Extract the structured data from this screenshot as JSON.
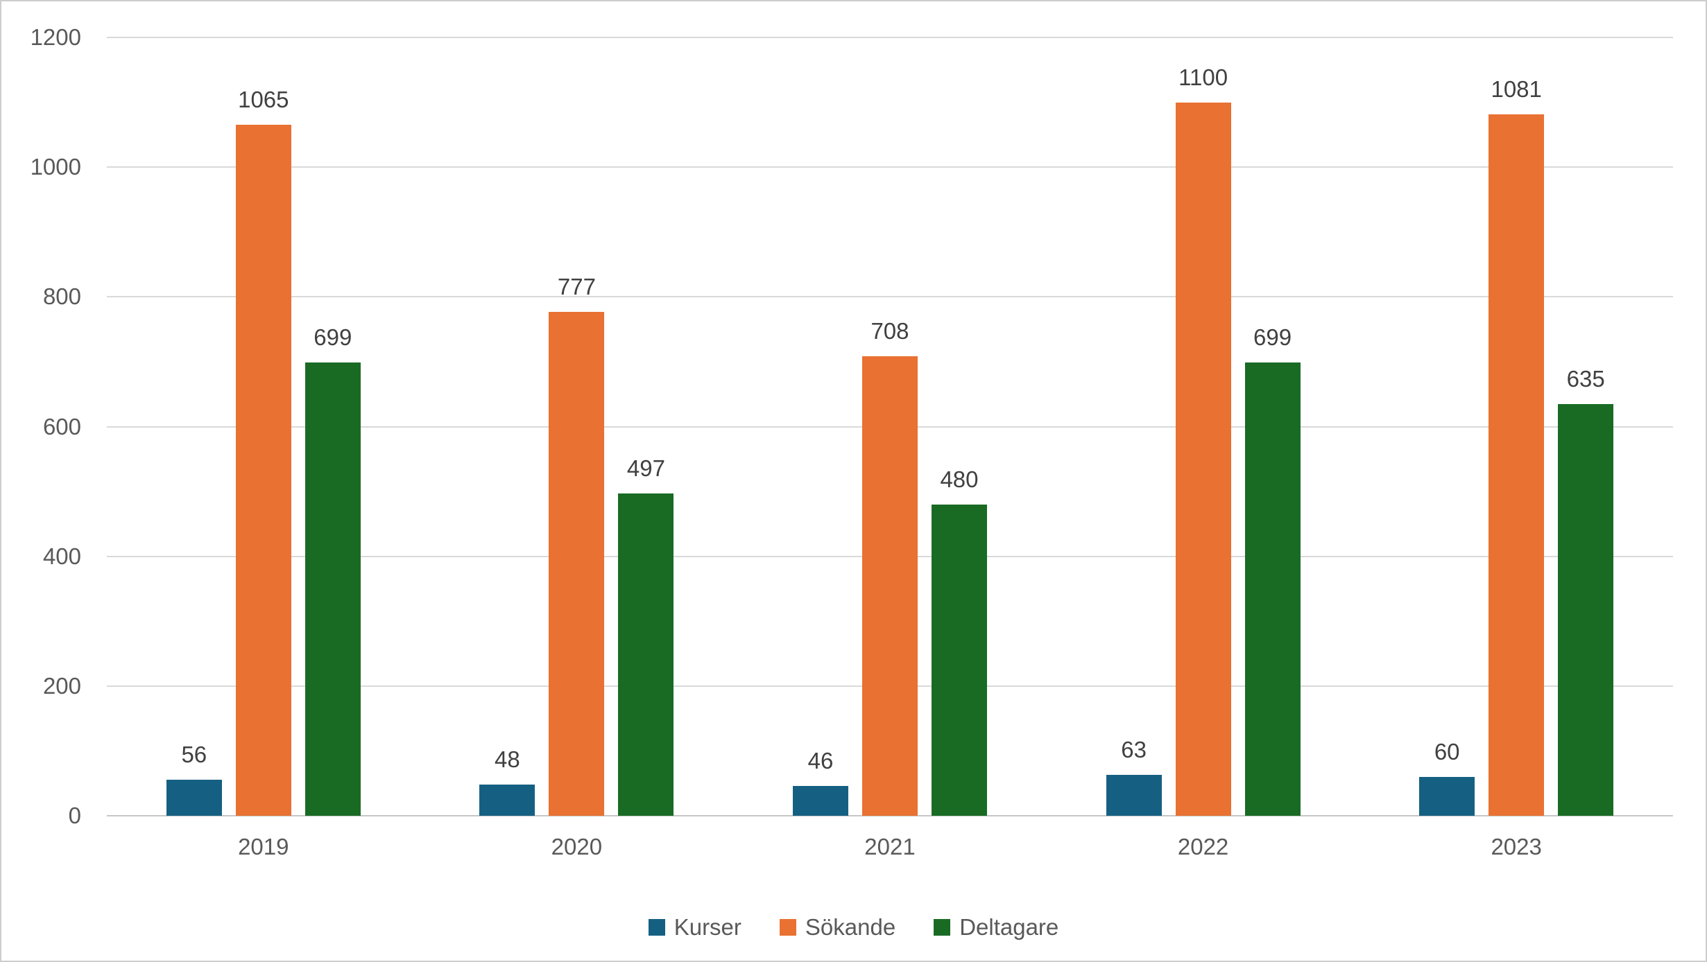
{
  "chart_data": {
    "type": "bar",
    "title": "",
    "categories": [
      "2019",
      "2020",
      "2021",
      "2022",
      "2023"
    ],
    "series": [
      {
        "name": "Kurser",
        "color": "#156082",
        "values": [
          56,
          48,
          46,
          63,
          60
        ]
      },
      {
        "name": "Sökande",
        "color": "#E97132",
        "values": [
          1065,
          777,
          708,
          1100,
          1081
        ]
      },
      {
        "name": "Deltagare",
        "color": "#196B24",
        "values": [
          699,
          497,
          480,
          699,
          635
        ]
      }
    ],
    "xlabel": "",
    "ylabel": "",
    "ylim": [
      0,
      1200
    ],
    "yticks": [
      "0",
      "200",
      "400",
      "600",
      "800",
      "1000",
      "1200"
    ],
    "grid": true,
    "data_labels_shown": true,
    "legend_position": "bottom"
  },
  "styles": {
    "gridline_color": "#D9D9D9",
    "axis_line_color": "#C6C6C6",
    "tick_label_color": "#595959",
    "data_label_color": "#404040",
    "frame_border_color": "#CDCDCD",
    "background_color": "#FFFFFF"
  }
}
